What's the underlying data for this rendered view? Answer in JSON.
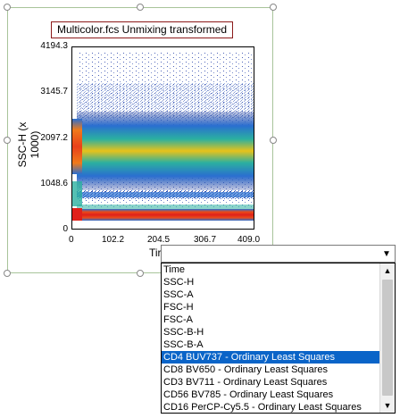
{
  "plot": {
    "title": "Multicolor.fcs Unmixing transformed",
    "x_axis_title": "Tir",
    "y_axis_title": "SSC-H (x 1000)",
    "x_ticks": [
      "0",
      "102.2",
      "204.5",
      "306.7",
      "409.0"
    ],
    "y_ticks": [
      "4194.3",
      "3145.7",
      "2097.2",
      "1048.6",
      "0"
    ]
  },
  "parameter_dropdown": {
    "current_value": "",
    "open_icon": "chevron-down-icon",
    "options": [
      "Time",
      "SSC-H",
      "SSC-A",
      "FSC-H",
      "FSC-A",
      "SSC-B-H",
      "SSC-B-A",
      "CD4 BUV737 - Ordinary Least Squares",
      "CD8 BV650 - Ordinary Least Squares",
      "CD3 BV711 - Ordinary Least Squares",
      "CD56 BV785 - Ordinary Least Squares",
      "CD16 PerCP-Cy5.5 - Ordinary Least Squares"
    ],
    "selected_option": "CD4 BUV737 - Ordinary Least Squares"
  },
  "colors": {
    "selection_border": "#a8c49a",
    "title_border": "#8b1a1a",
    "selected_item_bg": "#0a64c8"
  }
}
